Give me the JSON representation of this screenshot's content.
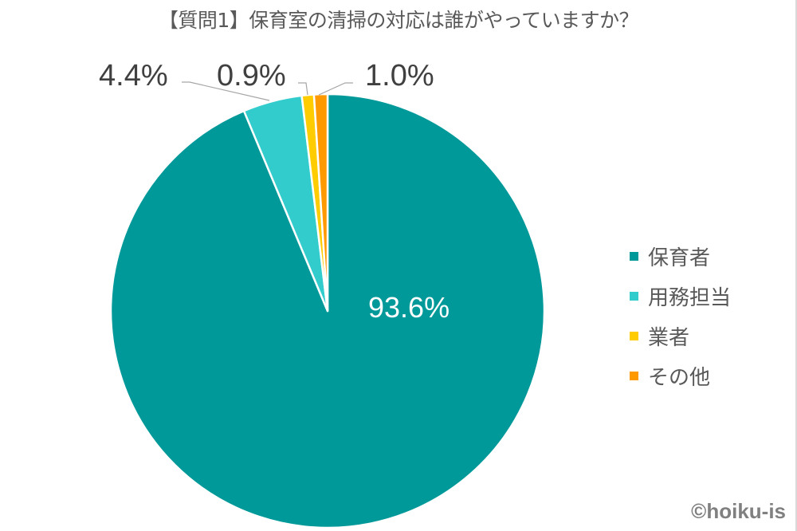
{
  "chart_data": {
    "type": "pie",
    "title": "【質問1】保育室の清掃の対応は誰がやっていますか？",
    "categories": [
      "保育者",
      "用務担当",
      "業者",
      "その他"
    ],
    "values": [
      93.6,
      4.4,
      0.9,
      1.0
    ],
    "value_labels": [
      "93.6%",
      "4.4%",
      "0.9%",
      "1.0%"
    ],
    "colors": [
      "#009999",
      "#33CCCC",
      "#FFCC00",
      "#FF9900"
    ],
    "start_angle": "12 o'clock",
    "direction": "clockwise",
    "legend_position": "right"
  },
  "labels": {
    "l0": "93.6%",
    "l1": "4.4%",
    "l2": "0.9%",
    "l3": "1.0%"
  },
  "legend": {
    "items": [
      {
        "label": "保育者",
        "color": "#009999"
      },
      {
        "label": "用務担当",
        "color": "#33CCCC"
      },
      {
        "label": "業者",
        "color": "#FFCC00"
      },
      {
        "label": "その他",
        "color": "#FF9900"
      }
    ]
  },
  "copyright": "©hoiku-is"
}
